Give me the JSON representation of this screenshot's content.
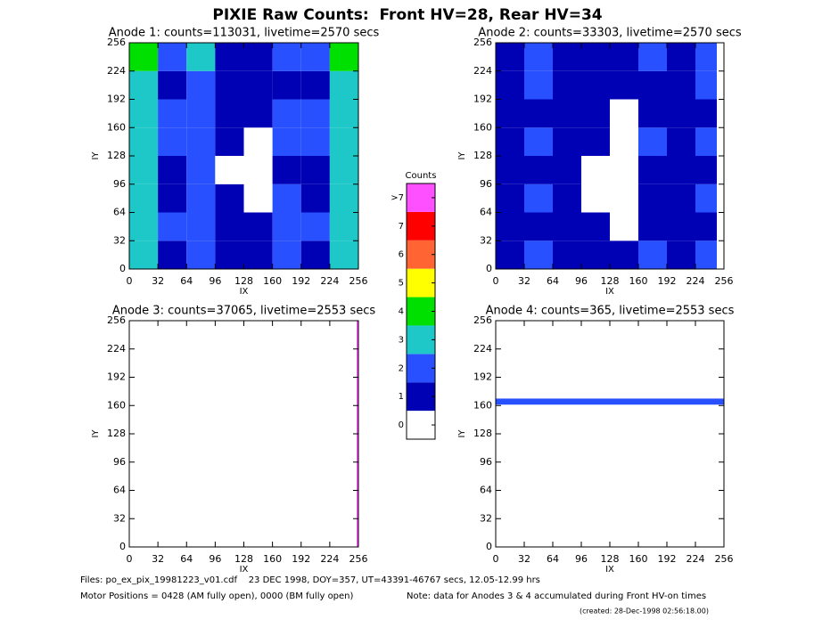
{
  "title": "PIXIE Raw Counts:  Front HV=28, Rear HV=34",
  "chart_data": [
    {
      "type": "heatmap",
      "title": "Anode 1: counts=113031, livetime=2570 secs",
      "xlabel": "IX",
      "ylabel": "IY",
      "xlim": [
        0,
        256
      ],
      "ylim": [
        0,
        256
      ],
      "xticks": [
        0,
        32,
        64,
        96,
        128,
        160,
        192,
        224,
        256
      ],
      "yticks": [
        0,
        32,
        64,
        96,
        128,
        160,
        192,
        224,
        256
      ],
      "xbins": [
        0,
        32,
        64,
        96,
        128,
        160,
        192,
        224,
        256
      ],
      "ybins": [
        0,
        32,
        64,
        96,
        128,
        160,
        192,
        224,
        256
      ],
      "z": [
        [
          3,
          1,
          2,
          1,
          1,
          2,
          1,
          3
        ],
        [
          3,
          2,
          2,
          1,
          1,
          2,
          2,
          3
        ],
        [
          3,
          1,
          2,
          1,
          0,
          2,
          1,
          3
        ],
        [
          3,
          1,
          2,
          0,
          0,
          1,
          1,
          3
        ],
        [
          3,
          2,
          2,
          1,
          0,
          2,
          2,
          3
        ],
        [
          3,
          2,
          2,
          1,
          1,
          2,
          2,
          3
        ],
        [
          3,
          1,
          2,
          1,
          1,
          1,
          1,
          3
        ],
        [
          4,
          2,
          3,
          1,
          1,
          2,
          2,
          4
        ]
      ]
    },
    {
      "type": "heatmap",
      "title": "Anode 2: counts=33303, livetime=2570 secs",
      "xlabel": "IX",
      "ylabel": "IY",
      "xlim": [
        0,
        256
      ],
      "ylim": [
        0,
        256
      ],
      "xticks": [
        0,
        32,
        64,
        96,
        128,
        160,
        192,
        224,
        256
      ],
      "yticks": [
        0,
        32,
        64,
        96,
        128,
        160,
        192,
        224,
        256
      ],
      "xbins": [
        0,
        32,
        64,
        96,
        128,
        160,
        192,
        224,
        248
      ],
      "ybins": [
        0,
        32,
        64,
        96,
        128,
        160,
        192,
        224,
        256
      ],
      "z": [
        [
          1,
          2,
          1,
          1,
          1,
          2,
          1,
          2
        ],
        [
          1,
          1,
          1,
          1,
          0,
          1,
          1,
          1
        ],
        [
          1,
          2,
          1,
          0,
          0,
          1,
          1,
          2
        ],
        [
          1,
          1,
          1,
          0,
          0,
          1,
          1,
          1
        ],
        [
          1,
          2,
          1,
          1,
          0,
          2,
          1,
          2
        ],
        [
          1,
          1,
          1,
          1,
          0,
          1,
          1,
          1
        ],
        [
          1,
          2,
          1,
          1,
          1,
          1,
          1,
          2
        ],
        [
          1,
          2,
          1,
          1,
          1,
          2,
          1,
          2
        ]
      ]
    },
    {
      "type": "heatmap",
      "title": "Anode 3: counts=37065, livetime=2553 secs",
      "xlabel": "IX",
      "ylabel": "IY",
      "xlim": [
        0,
        256
      ],
      "ylim": [
        0,
        256
      ],
      "xticks": [
        0,
        32,
        64,
        96,
        128,
        160,
        192,
        224,
        256
      ],
      "yticks": [
        0,
        32,
        64,
        96,
        128,
        160,
        192,
        224,
        256
      ],
      "xbins": [
        0,
        254,
        256
      ],
      "ybins": [
        0,
        256
      ],
      "z": [
        [
          0,
          8
        ]
      ]
    },
    {
      "type": "heatmap",
      "title": "Anode 4: counts=365, livetime=2553 secs",
      "xlabel": "IX",
      "ylabel": "IY",
      "xlim": [
        0,
        256
      ],
      "ylim": [
        0,
        256
      ],
      "xticks": [
        0,
        32,
        64,
        96,
        128,
        160,
        192,
        224,
        256
      ],
      "yticks": [
        0,
        32,
        64,
        96,
        128,
        160,
        192,
        224,
        256
      ],
      "xbins": [
        0,
        256
      ],
      "ybins": [
        0,
        161,
        168,
        256
      ],
      "z": [
        [
          0
        ],
        [
          2
        ],
        [
          0
        ]
      ]
    }
  ],
  "colorbar": {
    "title": "Counts",
    "colors": [
      "#ffffff",
      "#0000b4",
      "#2850ff",
      "#1ec8c8",
      "#00e000",
      "#ffff00",
      "#ff6432",
      "#ff0000",
      "#ff50ff"
    ],
    "ticks": [
      0,
      1,
      2,
      3,
      4,
      5,
      6,
      7,
      {
        "value": 8,
        "label": ">7"
      }
    ]
  },
  "footer": {
    "files": "Files: po_ex_pix_19981223_v01.cdf    23 DEC 1998, DOY=357, UT=43391-46767 secs, 12.05-12.99 hrs",
    "motor": "Motor Positions = 0428 (AM fully open), 0000 (BM fully open)",
    "note": "Note: data for Anodes 3 & 4 accumulated during Front HV-on times",
    "created": "(created: 28-Dec-1998 02:56:18.00)"
  }
}
